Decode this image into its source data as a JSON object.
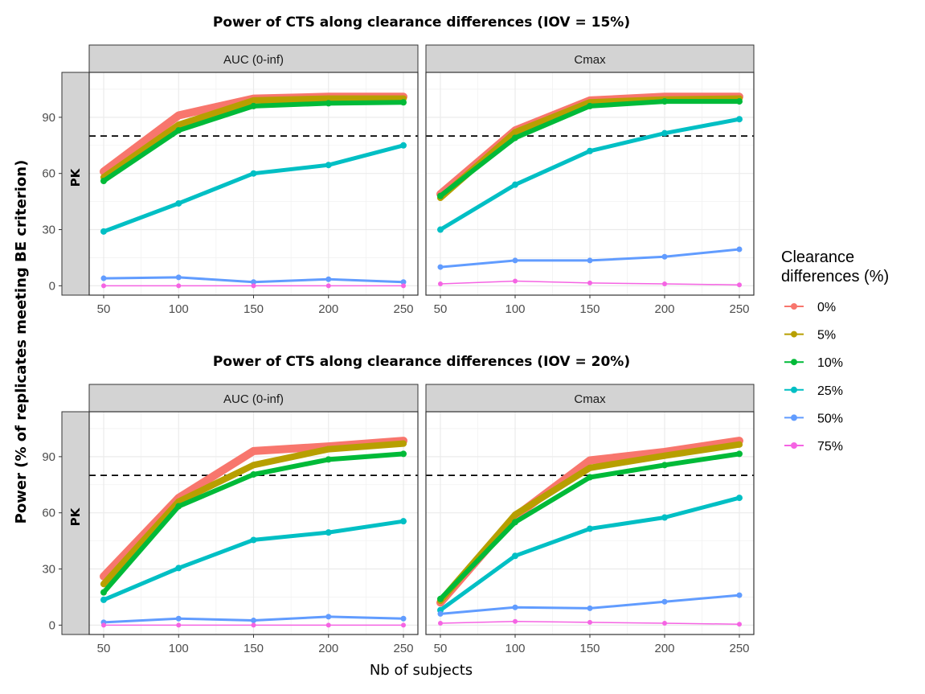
{
  "chart_data": {
    "type": "line",
    "ylabel": "Power (% of replicates meeting BE criterion)",
    "xlabel": "Nb of subjects",
    "x": [
      50,
      100,
      150,
      200,
      250
    ],
    "xticks": [
      "50",
      "100",
      "150",
      "200",
      "250"
    ],
    "yticks": [
      "0",
      "30",
      "60",
      "90"
    ],
    "ylim": [
      -5,
      114
    ],
    "threshold": 80,
    "row_strip": "PK",
    "legend": {
      "title_lines": [
        "Clearance",
        "differences (%)"
      ],
      "entries": [
        {
          "label": "0%",
          "color": "#F8766D"
        },
        {
          "label": "5%",
          "color": "#B79F00"
        },
        {
          "label": "10%",
          "color": "#00BA38"
        },
        {
          "label": "25%",
          "color": "#00BFC4"
        },
        {
          "label": "50%",
          "color": "#619CFF"
        },
        {
          "label": "75%",
          "color": "#F564E3"
        }
      ]
    },
    "figures": [
      {
        "title": "Power of CTS along clearance differences (IOV = 15%)",
        "panels": [
          {
            "strip": "AUC (0-inf)",
            "series": [
              {
                "name": "0%",
                "values": [
                  61,
                  91,
                  100,
                  101,
                  101
                ]
              },
              {
                "name": "5%",
                "values": [
                  58,
                  86,
                  99,
                  100,
                  100
                ]
              },
              {
                "name": "10%",
                "values": [
                  56,
                  83,
                  96,
                  97.5,
                  98
                ]
              },
              {
                "name": "25%",
                "values": [
                  29,
                  44,
                  60,
                  64.5,
                  75
                ]
              },
              {
                "name": "50%",
                "values": [
                  4,
                  4.5,
                  2,
                  3.5,
                  2
                ]
              },
              {
                "name": "75%",
                "values": [
                  0,
                  0,
                  0,
                  0,
                  0
                ]
              }
            ]
          },
          {
            "strip": "Cmax",
            "series": [
              {
                "name": "0%",
                "values": [
                  49,
                  83,
                  99,
                  101,
                  101
                ]
              },
              {
                "name": "5%",
                "values": [
                  47,
                  82,
                  98,
                  99.5,
                  100
                ]
              },
              {
                "name": "10%",
                "values": [
                  48,
                  79,
                  96,
                  98.5,
                  98.5
                ]
              },
              {
                "name": "25%",
                "values": [
                  30,
                  54,
                  72,
                  81.5,
                  89
                ]
              },
              {
                "name": "50%",
                "values": [
                  10,
                  13.5,
                  13.5,
                  15.5,
                  19.5
                ]
              },
              {
                "name": "75%",
                "values": [
                  1,
                  2.5,
                  1.5,
                  1,
                  0.5
                ]
              }
            ]
          }
        ]
      },
      {
        "title": "Power of CTS along clearance differences (IOV = 20%)",
        "panels": [
          {
            "strip": "AUC (0-inf)",
            "series": [
              {
                "name": "0%",
                "values": [
                  26,
                  68,
                  93,
                  95.5,
                  98.5
                ]
              },
              {
                "name": "5%",
                "values": [
                  22,
                  66,
                  85.5,
                  94,
                  97
                ]
              },
              {
                "name": "10%",
                "values": [
                  17.5,
                  63.5,
                  80.5,
                  88.5,
                  91.5
                ]
              },
              {
                "name": "25%",
                "values": [
                  13.5,
                  30.5,
                  45.5,
                  49.5,
                  55.5
                ]
              },
              {
                "name": "50%",
                "values": [
                  1.5,
                  3.5,
                  2.5,
                  4.5,
                  3.5
                ]
              },
              {
                "name": "75%",
                "values": [
                  0,
                  0,
                  0,
                  0,
                  0
                ]
              }
            ]
          },
          {
            "strip": "Cmax",
            "series": [
              {
                "name": "0%",
                "values": [
                  12,
                  58,
                  88,
                  92.5,
                  98.5
                ]
              },
              {
                "name": "5%",
                "values": [
                  13,
                  59,
                  84,
                  90.5,
                  96.5
                ]
              },
              {
                "name": "10%",
                "values": [
                  14,
                  55,
                  79,
                  85.5,
                  91.5
                ]
              },
              {
                "name": "25%",
                "values": [
                  8,
                  37,
                  51.5,
                  57.5,
                  68
                ]
              },
              {
                "name": "50%",
                "values": [
                  6,
                  9.5,
                  9,
                  12.5,
                  16
                ]
              },
              {
                "name": "75%",
                "values": [
                  1,
                  2,
                  1.5,
                  1,
                  0.5
                ]
              }
            ]
          }
        ]
      }
    ]
  }
}
